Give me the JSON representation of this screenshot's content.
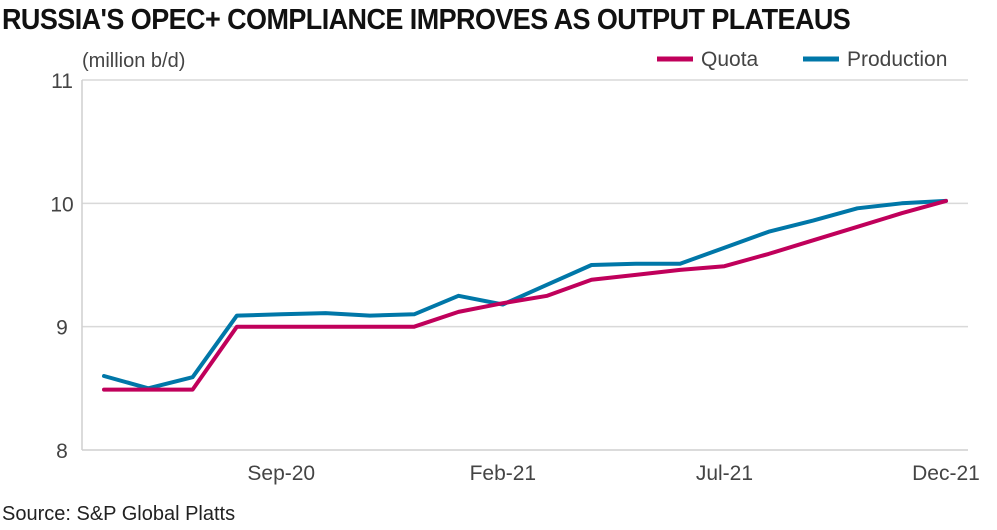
{
  "chart_data": {
    "type": "line",
    "title": "RUSSIA'S OPEC+ COMPLIANCE IMPROVES AS OUTPUT PLATEAUS",
    "ylabel": "(million b/d)",
    "xlabel": "",
    "source": "Source: S&P Global Platts",
    "x": [
      "May-20",
      "Jun-20",
      "Jul-20",
      "Aug-20",
      "Sep-20",
      "Oct-20",
      "Nov-20",
      "Dec-20",
      "Jan-21",
      "Feb-21",
      "Mar-21",
      "Apr-21",
      "May-21",
      "Jun-21",
      "Jul-21",
      "Aug-21",
      "Sep-21",
      "Oct-21",
      "Nov-21",
      "Dec-21"
    ],
    "x_tick_labels": [
      "Sep-20",
      "Feb-21",
      "Jul-21",
      "Dec-21"
    ],
    "ylim": [
      8,
      11
    ],
    "y_ticks": [
      8,
      9,
      10,
      11
    ],
    "y_tick_labels": [
      "8",
      "9",
      "10",
      "11"
    ],
    "grid": true,
    "legend_position": "top-right",
    "series": [
      {
        "name": "Quota",
        "color": "#c0005b",
        "values": [
          8.49,
          8.49,
          8.49,
          9.0,
          9.0,
          9.0,
          9.0,
          9.0,
          9.12,
          9.19,
          9.25,
          9.38,
          9.42,
          9.46,
          9.49,
          9.59,
          9.7,
          9.81,
          9.92,
          10.02
        ]
      },
      {
        "name": "Production",
        "color": "#0077a8",
        "values": [
          8.6,
          8.5,
          8.59,
          9.09,
          9.1,
          9.11,
          9.09,
          9.1,
          9.25,
          9.18,
          9.34,
          9.5,
          9.51,
          9.51,
          9.64,
          9.77,
          9.86,
          9.96,
          10.0,
          10.02
        ]
      }
    ]
  }
}
